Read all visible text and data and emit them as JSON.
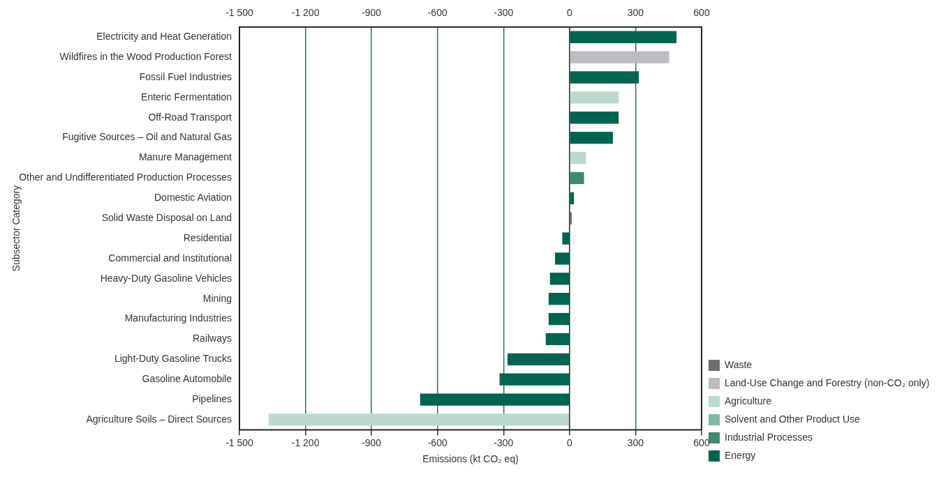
{
  "chart_data": {
    "type": "bar",
    "orientation": "horizontal",
    "ylabel": "Subsector Category",
    "xlabel": "Emissions (kt CO₂ eq)",
    "categories": [
      "Electricity and Heat Generation",
      "Wildfires in the Wood Production Forest",
      "Fossil Fuel Industries",
      "Enteric Fermentation",
      "Off-Road Transport",
      "Fugitive Sources – Oil and Natural Gas",
      "Manure Management",
      "Other and Undifferentiated Production Processes",
      "Domestic Aviation",
      "Solid Waste Disposal on Land",
      "Residential",
      "Commercial and Institutional",
      "Heavy-Duty Gasoline Vehicles",
      "Mining",
      "Manufacturing Industries",
      "Railways",
      "Light-Duty Gasoline Trucks",
      "Gasoline Automobile",
      "Pipelines",
      "Agriculture Soils – Direct Sources"
    ],
    "series": [
      {
        "name": "Waste",
        "color": "#6d6e70",
        "values": [
          null,
          null,
          null,
          null,
          null,
          null,
          null,
          null,
          null,
          10,
          null,
          null,
          null,
          null,
          null,
          null,
          null,
          null,
          null,
          null
        ]
      },
      {
        "name": "Land-Use Change and Forestry (non-CO₂ only)",
        "color": "#bdbdc1",
        "values": [
          null,
          453,
          null,
          null,
          null,
          null,
          null,
          null,
          null,
          null,
          null,
          null,
          null,
          null,
          null,
          null,
          null,
          null,
          null,
          null
        ]
      },
      {
        "name": "Agriculture",
        "color": "#bcd9cc",
        "values": [
          null,
          null,
          null,
          223,
          null,
          null,
          75,
          null,
          null,
          null,
          null,
          null,
          null,
          null,
          null,
          null,
          null,
          null,
          null,
          -1368
        ]
      },
      {
        "name": "Solvent and Other Product Use",
        "color": "#84b8a6",
        "values": [
          null,
          null,
          null,
          null,
          null,
          null,
          null,
          null,
          null,
          null,
          null,
          null,
          null,
          null,
          null,
          null,
          null,
          null,
          null,
          null
        ]
      },
      {
        "name": "Industrial Processes",
        "color": "#3d8a74",
        "values": [
          null,
          null,
          null,
          null,
          null,
          null,
          null,
          66,
          null,
          null,
          null,
          null,
          null,
          null,
          null,
          null,
          null,
          null,
          null,
          null
        ]
      },
      {
        "name": "Energy",
        "color": "#006450",
        "values": [
          486,
          null,
          315,
          null,
          223,
          197,
          null,
          null,
          20,
          null,
          -33,
          -66,
          -89,
          -95,
          -95,
          -108,
          -282,
          -318,
          -679,
          null
        ]
      }
    ],
    "xlim": [
      -1500,
      600
    ],
    "xticks": [
      {
        "value": -1500,
        "label": "-1 500"
      },
      {
        "value": -1200,
        "label": "-1 200"
      },
      -900,
      -600,
      -300,
      0,
      300,
      600
    ],
    "x2lim": [
      -1500,
      600
    ],
    "x2ticks": [
      {
        "value": -1500,
        "label": "-1 500"
      },
      {
        "value": -1200,
        "label": "-1 200"
      },
      -900,
      -600,
      -300,
      0,
      300,
      600
    ],
    "grid": "x",
    "legend": "bottom right"
  }
}
